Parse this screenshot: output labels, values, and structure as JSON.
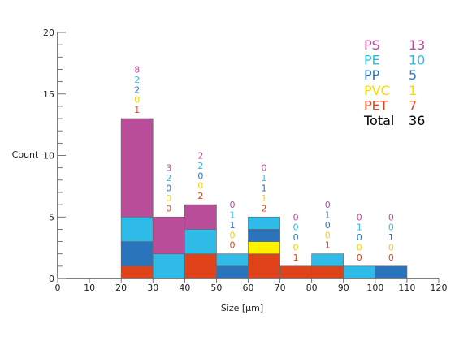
{
  "chart_data": {
    "type": "bar",
    "stacked": true,
    "xlabel": "Size [µm]",
    "ylabel": "Count",
    "xlim": [
      0,
      120
    ],
    "ylim": [
      0,
      20
    ],
    "x_ticks": [
      0,
      10,
      20,
      30,
      40,
      50,
      60,
      70,
      80,
      90,
      100,
      110,
      120
    ],
    "y_ticks": [
      0,
      5,
      10,
      15,
      20
    ],
    "bin_width": 10,
    "bins": [
      20,
      30,
      40,
      50,
      60,
      70,
      80,
      90,
      100
    ],
    "series": [
      {
        "name": "PET",
        "color": "#e0421a",
        "values": [
          1,
          0,
          2,
          0,
          2,
          1,
          1,
          0,
          0
        ]
      },
      {
        "name": "PVC",
        "color": "#fff200",
        "values": [
          0,
          0,
          0,
          0,
          1,
          0,
          0,
          0,
          0
        ]
      },
      {
        "name": "PP",
        "color": "#2a74bc",
        "values": [
          2,
          0,
          0,
          1,
          1,
          0,
          0,
          0,
          1
        ]
      },
      {
        "name": "PE",
        "color": "#2fbbe8",
        "values": [
          2,
          2,
          2,
          1,
          1,
          0,
          1,
          1,
          0
        ]
      },
      {
        "name": "PS",
        "color": "#b94d9a",
        "values": [
          8,
          3,
          2,
          0,
          0,
          0,
          0,
          0,
          0
        ]
      }
    ],
    "label_order": [
      "PS",
      "PE",
      "PP",
      "PVC",
      "PET"
    ],
    "legend": {
      "placement": "top-right",
      "entries": [
        {
          "name": "PS",
          "count": "13",
          "color": "#b94d9a"
        },
        {
          "name": "PE",
          "count": "10",
          "color": "#2fbbe8"
        },
        {
          "name": "PP",
          "count": "5",
          "color": "#2a74bc"
        },
        {
          "name": "PVC",
          "count": "1",
          "color": "#f5d800"
        },
        {
          "name": "PET",
          "count": "7",
          "color": "#e0421a"
        },
        {
          "name": "Total",
          "count": "36",
          "color": "#000000"
        }
      ]
    }
  }
}
